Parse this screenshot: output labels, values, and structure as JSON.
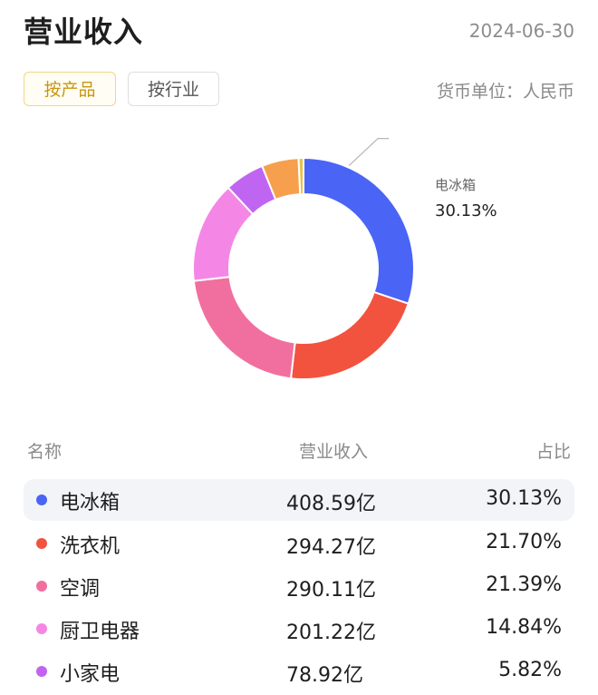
{
  "header": {
    "title": "营业收入",
    "date": "2024-06-30"
  },
  "tabs": [
    {
      "label": "按产品",
      "active": true
    },
    {
      "label": "按行业",
      "active": false
    }
  ],
  "currency": "货币单位：人民币",
  "table": {
    "headers": {
      "name": "名称",
      "revenue": "营业收入",
      "percent": "占比"
    }
  },
  "chart_data": {
    "type": "pie",
    "title": "",
    "callout": {
      "label": "电冰箱",
      "value": "30.13%"
    },
    "series": [
      {
        "name": "电冰箱",
        "revenue": "408.59亿",
        "percent": "30.13%",
        "value": 30.13,
        "color": "#4a64f5"
      },
      {
        "name": "洗衣机",
        "revenue": "294.27亿",
        "percent": "21.70%",
        "value": 21.7,
        "color": "#f2533e"
      },
      {
        "name": "空调",
        "revenue": "290.11亿",
        "percent": "21.39%",
        "value": 21.39,
        "color": "#f16f9e"
      },
      {
        "name": "厨卫电器",
        "revenue": "201.22亿",
        "percent": "14.84%",
        "value": 14.84,
        "color": "#f487e6"
      },
      {
        "name": "小家电",
        "revenue": "78.92亿",
        "percent": "5.82%",
        "value": 5.82,
        "color": "#c065f2"
      },
      {
        "value": 5.4,
        "color": "#f6a04e"
      },
      {
        "value": 0.72,
        "color": "#e8c34a"
      }
    ]
  }
}
